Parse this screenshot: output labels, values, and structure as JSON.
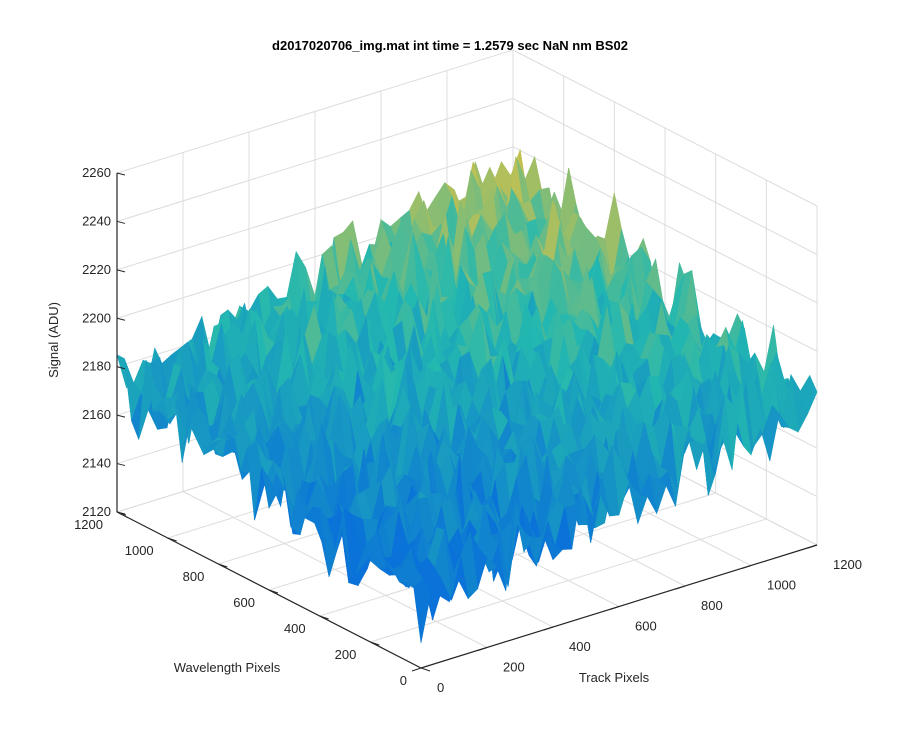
{
  "figure": {
    "title": "d2017020706_img.mat int time = 1.2579 sec  NaN nm BS02"
  },
  "chart_data": {
    "type": "surface",
    "title": "d2017020706_img.mat int time = 1.2579 sec  NaN nm BS02",
    "xlabel": "Track Pixels",
    "ylabel": "Wavelength Pixels",
    "zlabel": "Signal (ADU)",
    "xlim": [
      0,
      1200
    ],
    "ylim": [
      0,
      1200
    ],
    "zlim": [
      2120,
      2260
    ],
    "x_ticks": [
      "0",
      "200",
      "400",
      "600",
      "800",
      "1000",
      "1200"
    ],
    "y_ticks": [
      "0",
      "200",
      "400",
      "600",
      "800",
      "1000",
      "1200"
    ],
    "z_ticks": [
      "2120",
      "2140",
      "2160",
      "2180",
      "2200",
      "2220",
      "2240",
      "2260"
    ],
    "grid": true,
    "colormap": "parula",
    "colors": {
      "low": "#0a72d8",
      "mid": "#23b8b0",
      "high": "#e8c23a",
      "axis": "#262626",
      "grid": "#dcdcdc"
    },
    "corner_mean_signal": {
      "x0_y0": 2148,
      "x1200_y0": 2178,
      "x0_y1200": 2172,
      "x1200_y1200": 2213
    },
    "noise_amplitude_adu": 12
  }
}
